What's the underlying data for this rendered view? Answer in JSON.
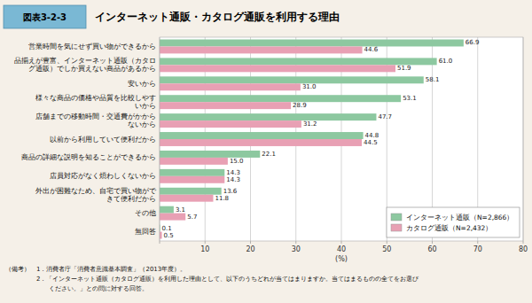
{
  "chart_data": {
    "type": "bar",
    "orientation": "horizontal",
    "title": "インターネット通販・カタログ通販を利用する理由",
    "annotations": [
      "図表3-2-3",
      "（備考）　1．消費者庁「消費者意識基本調査」（2013年度）。",
      "　　　　　2．「インターネット通販（カタログ通販）を利用した理由として、以下のうちどれが当てはまりますか。当てはまるものの全てをお選び",
      "　　　　　　　ください。」との問に対する回答。"
    ],
    "categories": [
      "営業時間を気にせず買い物ができるから",
      "品揃えが豊富、インターネット通販（カタロ\nグ通販）でしか買えない商品があるから",
      "安いから",
      "様々な商品の価格や品質を比較しやす\nいから",
      "店舗までの移動時間・交通費がかから\nないから",
      "以前から利用していて便利だから",
      "商品の詳細な説明を知ることができるから",
      "店員対応がなく煩わしくないから",
      "外出が困難なため、自宅で買い物がで\nきて便利だから",
      "その他",
      "無回答"
    ],
    "series": [
      {
        "name": "インターネット通販（N=2,866）",
        "color": "#8dc8a0",
        "values": [
          66.9,
          61.0,
          58.1,
          53.1,
          47.7,
          44.8,
          22.1,
          14.3,
          13.6,
          3.1,
          0.1
        ],
        "value_labels": [
          "66.9",
          "61.0",
          "58.1",
          "53.1",
          "47.7",
          "44.8",
          "22.1",
          "14.3",
          "13.6",
          "3.1",
          "0.1"
        ]
      },
      {
        "name": "カタログ通販（N=2,432）",
        "color": "#e8a0b4",
        "values": [
          44.6,
          51.9,
          31.0,
          28.9,
          31.2,
          44.5,
          15.0,
          14.3,
          11.8,
          5.7,
          0.5
        ],
        "value_labels": [
          "44.6",
          "51.9",
          "31.0",
          "28.9",
          "31.2",
          "44.5",
          "15.0",
          "14.3",
          "11.8",
          "5.7",
          "0.5"
        ]
      }
    ],
    "xlim": [
      0,
      80
    ],
    "xticks": [
      {
        "value": 0,
        "label": null
      },
      10,
      20,
      30,
      40,
      50,
      60,
      70,
      80
    ],
    "xlabel": "(%)",
    "grid": true,
    "legend": "lower right",
    "data_labels": true
  }
}
